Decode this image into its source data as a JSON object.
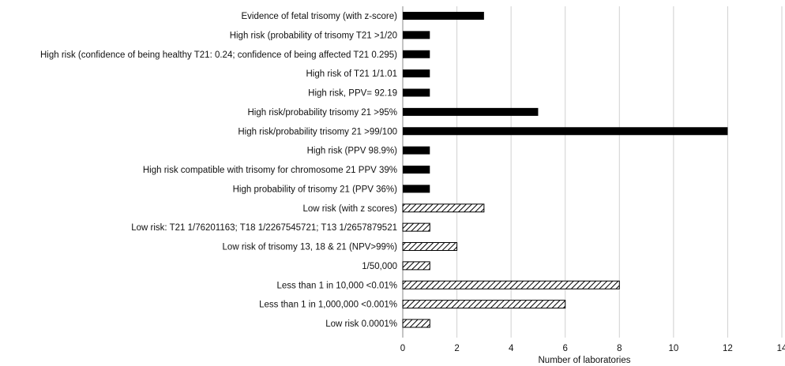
{
  "chart_data": {
    "type": "bar",
    "orientation": "horizontal",
    "categories": [
      "Evidence of fetal trisomy (with z-score)",
      "High risk (probability of trisomy T21 >1/20",
      "High risk (confidence of being healthy T21: 0.24; confidence of being affected T21 0.295)",
      "High risk of T21 1/1.01",
      "High risk, PPV= 92.19",
      "High risk/probability trisomy 21 >95%",
      "High risk/probability trisomy 21 >99/100",
      "High risk (PPV 98.9%)",
      "High risk compatible with trisomy for chromosome 21 PPV 39%",
      "High probability of trisomy 21 (PPV 36%)",
      "Low risk (with z scores)",
      "Low risk: T21 1/76201163; T18 1/2267545721; T13 1/2657879521",
      "Low risk of trisomy 13, 18 & 21 (NPV>99%)",
      "1/50,000",
      "Less than 1 in 10,000 <0.01%",
      "Less than 1 in 1,000,000 <0.001%",
      "Low risk 0.0001%"
    ],
    "values": [
      3,
      1,
      1,
      1,
      1,
      5,
      12,
      1,
      1,
      1,
      3,
      1,
      2,
      1,
      8,
      6,
      1
    ],
    "bar_fill": [
      "solid",
      "solid",
      "solid",
      "solid",
      "solid",
      "solid",
      "solid",
      "solid",
      "solid",
      "solid",
      "hatched",
      "hatched",
      "hatched",
      "hatched",
      "hatched",
      "hatched",
      "hatched"
    ],
    "xlabel": "Number of laboratories",
    "xlim": [
      0,
      14
    ],
    "xticks": [
      0,
      2,
      4,
      6,
      8,
      10,
      12,
      14
    ],
    "grid": "vertical",
    "colors": {
      "bar": "#000000",
      "hatch_stroke": "#000000",
      "grid": "#d0d0d0"
    }
  }
}
